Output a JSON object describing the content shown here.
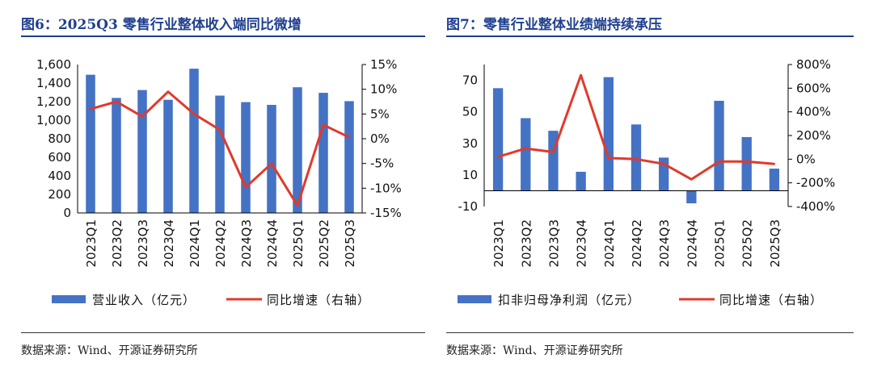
{
  "colors": {
    "bar": "#4472c4",
    "line": "#e03a2c",
    "title": "#1f3f8f"
  },
  "left": {
    "title": "图6：2025Q3 零售行业整体收入端同比微增",
    "source": "数据来源：Wind、开源证券研究所",
    "legend": {
      "bar": "营业收入（亿元）",
      "line": "同比增速（右轴）"
    }
  },
  "right": {
    "title": "图7：零售行业整体业绩端持续承压",
    "source": "数据来源：Wind、开源证券研究所",
    "legend": {
      "bar": "扣非归母净利润（亿元）",
      "line": "同比增速（右轴）"
    }
  },
  "chart_data": [
    {
      "type": "bar+line",
      "title": "图6：2025Q3 零售行业整体收入端同比微增",
      "categories": [
        "2023Q1",
        "2023Q2",
        "2023Q3",
        "2023Q4",
        "2024Q1",
        "2024Q2",
        "2024Q3",
        "2024Q4",
        "2025Q1",
        "2025Q2",
        "2025Q3"
      ],
      "series": [
        {
          "name": "营业收入（亿元）",
          "type": "bar",
          "axis": "left",
          "values": [
            1490,
            1240,
            1325,
            1220,
            1555,
            1265,
            1195,
            1165,
            1355,
            1295,
            1205
          ]
        },
        {
          "name": "同比增速（右轴）",
          "type": "line",
          "axis": "right",
          "unit": "%",
          "values": [
            6.0,
            7.5,
            4.5,
            9.5,
            5.0,
            1.8,
            -9.8,
            -5.0,
            -13.5,
            2.8,
            0.3
          ]
        }
      ],
      "y_left": {
        "ticks": [
          0,
          200,
          400,
          600,
          800,
          1000,
          1200,
          1400,
          1600
        ],
        "tick_labels": [
          "0",
          "200",
          "400",
          "600",
          "800",
          "1,000",
          "1,200",
          "1,400",
          "1,600"
        ],
        "lim": [
          0,
          1600
        ]
      },
      "y_right": {
        "ticks": [
          -15,
          -10,
          -5,
          0,
          5,
          10,
          15
        ],
        "tick_labels": [
          "-15%",
          "-10%",
          "-5%",
          "0%",
          "5%",
          "10%",
          "15%"
        ],
        "lim": [
          -15,
          15
        ]
      },
      "legend": "bottom"
    },
    {
      "type": "bar+line",
      "title": "图7：零售行业整体业绩端持续承压",
      "categories": [
        "2023Q1",
        "2023Q2",
        "2023Q3",
        "2023Q4",
        "2024Q1",
        "2024Q2",
        "2024Q3",
        "2024Q4",
        "2025Q1",
        "2025Q2",
        "2025Q3"
      ],
      "series": [
        {
          "name": "扣非归母净利润（亿元）",
          "type": "bar",
          "axis": "left",
          "values": [
            65,
            46,
            38,
            12,
            72,
            42,
            21,
            -8,
            57,
            34,
            14
          ]
        },
        {
          "name": "同比增速（右轴）",
          "type": "line",
          "axis": "right",
          "unit": "%",
          "values": [
            20,
            90,
            60,
            710,
            10,
            0,
            -40,
            -170,
            -20,
            -20,
            -40
          ]
        }
      ],
      "y_left": {
        "ticks": [
          -10,
          10,
          30,
          50,
          70
        ],
        "tick_labels": [
          "-10",
          "10",
          "30",
          "50",
          "70"
        ],
        "lim": [
          -10,
          80
        ]
      },
      "y_right": {
        "ticks": [
          -400,
          -200,
          0,
          200,
          400,
          600,
          800
        ],
        "tick_labels": [
          "-400%",
          "-200%",
          "0%",
          "200%",
          "400%",
          "600%",
          "800%"
        ],
        "lim": [
          -400,
          800
        ]
      },
      "legend": "bottom"
    }
  ]
}
